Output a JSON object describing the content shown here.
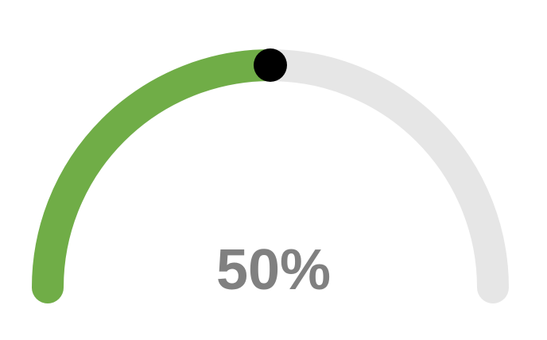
{
  "gauge": {
    "value_text": "50%",
    "fraction": 0.5,
    "colors": {
      "fill": "#70ad47",
      "track": "#e6e6e6",
      "knob": "#000000",
      "label": "#808080"
    }
  }
}
